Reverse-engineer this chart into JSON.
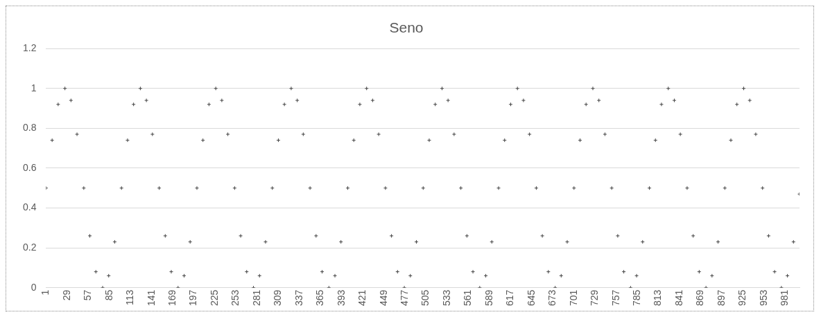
{
  "chart_data": {
    "type": "scatter",
    "title": "Seno",
    "marker": "cross",
    "grid": "y",
    "xlim": [
      1,
      1000
    ],
    "xticks": [
      1,
      29,
      57,
      85,
      113,
      141,
      169,
      197,
      225,
      253,
      281,
      309,
      337,
      365,
      393,
      421,
      449,
      477,
      505,
      533,
      561,
      589,
      617,
      645,
      673,
      701,
      729,
      757,
      785,
      813,
      841,
      869,
      897,
      925,
      953,
      981
    ],
    "ylim": [
      0,
      1.2
    ],
    "yticks": [
      0,
      0.2,
      0.4,
      0.6,
      0.8,
      1,
      1.2
    ],
    "series": [
      {
        "color": "#404040",
        "x": [
          1,
          9,
          17,
          26,
          34,
          42,
          51,
          59,
          67,
          76,
          84,
          92,
          101,
          109,
          117,
          126,
          134,
          142,
          151,
          159,
          167,
          176,
          184,
          192,
          201,
          209,
          217,
          226,
          234,
          242,
          251,
          259,
          267,
          276,
          284,
          292,
          301,
          309,
          317,
          326,
          334,
          342,
          351,
          359,
          367,
          376,
          384,
          392,
          401,
          409,
          417,
          426,
          434,
          442,
          451,
          459,
          467,
          476,
          484,
          492,
          501,
          509,
          517,
          526,
          534,
          542,
          551,
          559,
          567,
          576,
          584,
          592,
          601,
          609,
          617,
          626,
          634,
          642,
          651,
          659,
          667,
          676,
          684,
          692,
          701,
          709,
          717,
          726,
          734,
          742,
          751,
          759,
          767,
          776,
          784,
          792,
          801,
          809,
          817,
          826,
          834,
          842,
          851,
          859,
          867,
          876,
          884,
          892,
          901,
          909,
          917,
          926,
          934,
          942,
          951,
          959,
          967,
          976,
          984,
          992,
          1000
        ],
        "values": [
          0.5,
          0.74,
          0.92,
          1,
          0.94,
          0.77,
          0.5,
          0.26,
          0.08,
          0,
          0.06,
          0.23,
          0.5,
          0.74,
          0.92,
          1,
          0.94,
          0.77,
          0.5,
          0.26,
          0.08,
          0,
          0.06,
          0.23,
          0.5,
          0.74,
          0.92,
          1,
          0.94,
          0.77,
          0.5,
          0.26,
          0.08,
          0,
          0.06,
          0.23,
          0.5,
          0.74,
          0.92,
          1,
          0.94,
          0.77,
          0.5,
          0.26,
          0.08,
          0,
          0.06,
          0.23,
          0.5,
          0.74,
          0.92,
          1,
          0.94,
          0.77,
          0.5,
          0.26,
          0.08,
          0,
          0.06,
          0.23,
          0.5,
          0.74,
          0.92,
          1,
          0.94,
          0.77,
          0.5,
          0.26,
          0.08,
          0,
          0.06,
          0.23,
          0.5,
          0.74,
          0.92,
          1,
          0.94,
          0.77,
          0.5,
          0.26,
          0.08,
          0,
          0.06,
          0.23,
          0.5,
          0.74,
          0.92,
          1,
          0.94,
          0.77,
          0.5,
          0.26,
          0.08,
          0,
          0.06,
          0.23,
          0.5,
          0.74,
          0.92,
          1,
          0.94,
          0.77,
          0.5,
          0.26,
          0.08,
          0,
          0.06,
          0.23,
          0.5,
          0.74,
          0.92,
          1,
          0.94,
          0.77,
          0.5,
          0.26,
          0.08,
          0,
          0.06,
          0.23,
          0.47
        ]
      }
    ]
  }
}
